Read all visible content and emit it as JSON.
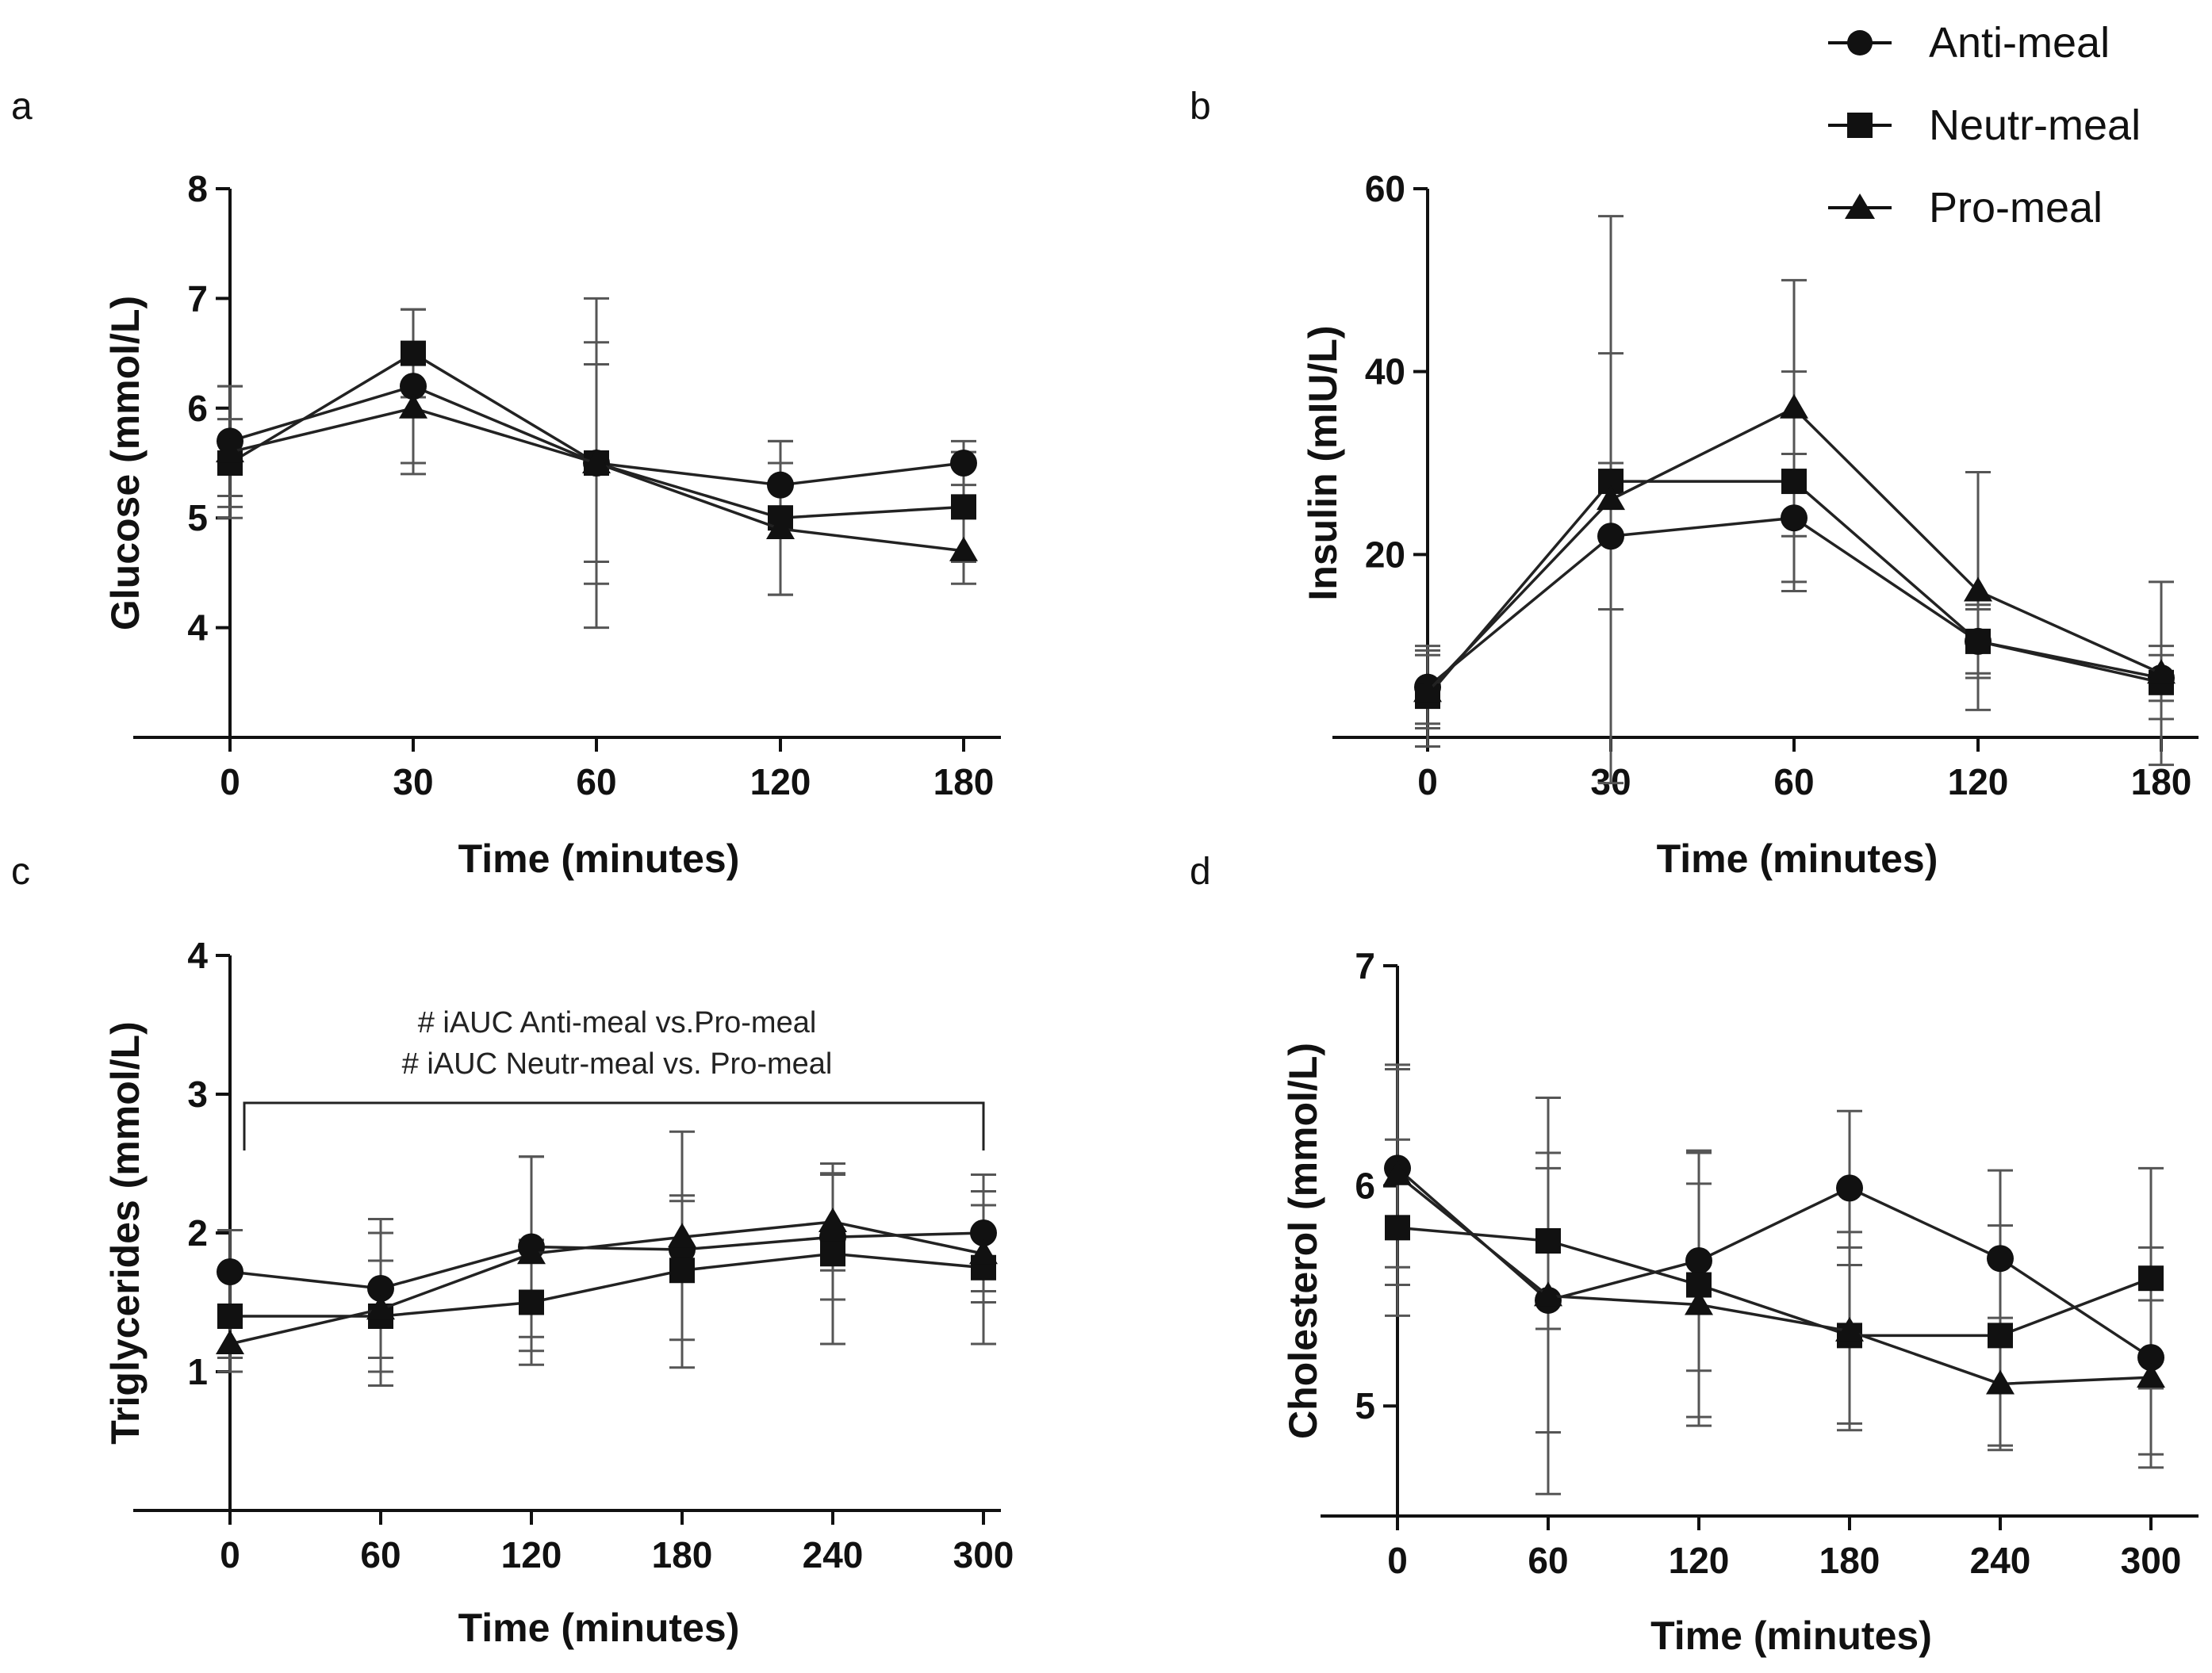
{
  "legend": {
    "entries": [
      {
        "label": "Anti-meal",
        "marker": "circle"
      },
      {
        "label": "Neutr-meal",
        "marker": "square"
      },
      {
        "label": "Pro-meal",
        "marker": "triangle"
      }
    ]
  },
  "chart_data": [
    {
      "panel": "a",
      "type": "line",
      "xlabel": "Time (minutes)",
      "ylabel": "Glucose (mmol/L)",
      "categories": [
        "0",
        "30",
        "60",
        "120",
        "180"
      ],
      "ylim": [
        3,
        8
      ],
      "yticks": [
        4,
        5,
        6,
        7,
        8
      ],
      "series": [
        {
          "name": "Anti-meal",
          "marker": "circle",
          "values": [
            5.7,
            6.2,
            5.5,
            5.3,
            5.5
          ],
          "err": [
            0.5,
            0.7,
            1.5,
            0.4,
            0.2
          ]
        },
        {
          "name": "Neutr-meal",
          "marker": "square",
          "values": [
            5.5,
            6.5,
            5.5,
            5.0,
            5.1
          ],
          "err": [
            0.4,
            0.4,
            1.1,
            0.7,
            0.5
          ]
        },
        {
          "name": "Pro-meal",
          "marker": "triangle",
          "values": [
            5.6,
            6.0,
            5.5,
            4.9,
            4.7
          ],
          "err": [
            0.6,
            0.6,
            0.9,
            0.6,
            0.3
          ]
        }
      ]
    },
    {
      "panel": "b",
      "type": "line",
      "xlabel": "Time (minutes)",
      "ylabel": "Insulin (mIU/L)",
      "categories": [
        "0",
        "30",
        "60",
        "120",
        "180"
      ],
      "ylim": [
        0,
        60
      ],
      "yticks": [
        20,
        40,
        60
      ],
      "series": [
        {
          "name": "Anti-meal",
          "marker": "circle",
          "values": [
            5.5,
            22,
            24,
            10.5,
            6.5
          ],
          "err": [
            4,
            8,
            7,
            3.5,
            2.5
          ]
        },
        {
          "name": "Neutr-meal",
          "marker": "square",
          "values": [
            4.5,
            28,
            28,
            10.5,
            6
          ],
          "err": [
            5.5,
            14,
            12,
            4,
            4
          ]
        },
        {
          "name": "Pro-meal",
          "marker": "triangle",
          "values": [
            5,
            26,
            36,
            16,
            7
          ],
          "err": [
            4,
            31,
            14,
            13,
            10
          ]
        }
      ]
    },
    {
      "panel": "c",
      "type": "line",
      "xlabel": "Time (minutes)",
      "ylabel": "Triglycerides (mmol/L)",
      "categories": [
        "0",
        "60",
        "120",
        "180",
        "240",
        "300"
      ],
      "ylim": [
        0,
        4
      ],
      "yticks": [
        1,
        2,
        3,
        4
      ],
      "annotation": {
        "lines": [
          "# iAUC Anti-meal vs.Pro-meal",
          "# iAUC Neutr-meal vs. Pro-meal"
        ]
      },
      "series": [
        {
          "name": "Anti-meal",
          "marker": "circle",
          "values": [
            1.72,
            1.6,
            1.9,
            1.88,
            1.97,
            2.0
          ],
          "err": [
            0.3,
            0.5,
            0.65,
            0.85,
            0.45,
            0.42
          ]
        },
        {
          "name": "Neutr-meal",
          "marker": "square",
          "values": [
            1.4,
            1.4,
            1.5,
            1.73,
            1.85,
            1.75
          ],
          "err": [
            0.3,
            0.4,
            0.45,
            0.5,
            0.65,
            0.55
          ]
        },
        {
          "name": "Pro-meal",
          "marker": "triangle",
          "values": [
            1.2,
            1.45,
            1.85,
            1.97,
            2.08,
            1.85
          ],
          "err": [
            0.2,
            0.55,
            0.7,
            0.3,
            0.35,
            0.35
          ]
        }
      ]
    },
    {
      "panel": "d",
      "type": "line",
      "xlabel": "Time (minutes)",
      "ylabel": "Cholesterol (mmol/L)",
      "categories": [
        "0",
        "60",
        "120",
        "180",
        "240",
        "300"
      ],
      "ylim": [
        4.5,
        7
      ],
      "yticks": [
        5,
        6,
        7
      ],
      "series": [
        {
          "name": "Anti-meal",
          "marker": "circle",
          "values": [
            6.08,
            5.48,
            5.66,
            5.99,
            5.67,
            5.22
          ],
          "err": [
            0.45,
            0.6,
            0.5,
            0.35,
            0.4,
            0.5
          ]
        },
        {
          "name": "Neutr-meal",
          "marker": "square",
          "values": [
            5.81,
            5.75,
            5.55,
            5.32,
            5.32,
            5.58
          ],
          "err": [
            0.4,
            0.4,
            0.6,
            0.4,
            0.5,
            0.5
          ]
        },
        {
          "name": "Pro-meal",
          "marker": "triangle",
          "values": [
            6.05,
            5.5,
            5.46,
            5.34,
            5.1,
            5.13
          ],
          "err": [
            0.5,
            0.9,
            0.55,
            0.45,
            0.3,
            0.35
          ]
        }
      ]
    }
  ]
}
